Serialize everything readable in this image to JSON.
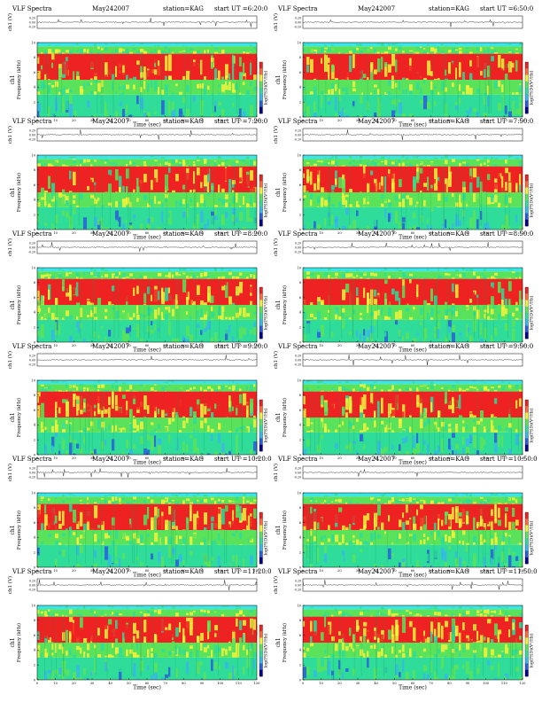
{
  "figure": {
    "x_tick_labels": [
      "0",
      "10",
      "20",
      "30",
      "40",
      "50",
      "60",
      "70",
      "80",
      "90",
      "100",
      "110",
      "120"
    ],
    "xlabel": "Time (sec)",
    "freq_tick_labels": [
      "0",
      "2",
      "4",
      "6",
      "8",
      "10"
    ],
    "freq_label_top": "ch1",
    "freq_label": "Frequency (kHz)",
    "wave_label": "ch1 (V)",
    "wave_tick_labels": [
      "0.20",
      "0.00",
      "-0.20"
    ],
    "colorbar_label": "log(PSD)(V²/Hz)"
  },
  "colors": {
    "low": "#2a5fd8",
    "mid": "#2fdc9a",
    "green": "#5ae35a",
    "yellow": "#f2f23c",
    "red": "#ee2222",
    "cyan_band": "#3ce6e6",
    "dark_blue": "#00008b"
  },
  "chart_data": [
    {
      "type": "heatmap",
      "title_left": "VLF Spectra",
      "date": "May242007",
      "station": "station=KAG",
      "start": "start UT =6:20:0",
      "xlabel": "Time (sec)",
      "ylabel": "Frequency (kHz)",
      "xlim": [
        0,
        120
      ],
      "ylim": [
        0,
        10
      ],
      "bands": [
        {
          "from_khz": 0,
          "to_khz": 3,
          "level": "low"
        },
        {
          "from_khz": 3,
          "to_khz": 5,
          "level": "mid"
        },
        {
          "from_khz": 5,
          "to_khz": 8.5,
          "level": "high"
        },
        {
          "from_khz": 8.5,
          "to_khz": 9.5,
          "level": "mid"
        },
        {
          "from_khz": 9.5,
          "to_khz": 10,
          "level": "cyan"
        }
      ]
    },
    {
      "type": "heatmap",
      "title_left": "VLF Spectra",
      "date": "May242007",
      "station": "station=KAG",
      "start": "start UT =6:50:0",
      "xlabel": "Time (sec)",
      "ylabel": "Frequency (kHz)",
      "xlim": [
        0,
        120
      ],
      "ylim": [
        0,
        10
      ],
      "bands": [
        {
          "from_khz": 0,
          "to_khz": 3,
          "level": "low"
        },
        {
          "from_khz": 3,
          "to_khz": 5,
          "level": "mid"
        },
        {
          "from_khz": 5,
          "to_khz": 8.5,
          "level": "high"
        },
        {
          "from_khz": 8.5,
          "to_khz": 9.5,
          "level": "mid"
        },
        {
          "from_khz": 9.5,
          "to_khz": 10,
          "level": "cyan"
        }
      ]
    },
    {
      "type": "heatmap",
      "title_left": "VLF Spectra",
      "date": "May242007",
      "station": "station=KAG",
      "start": "start UT =7:20:0",
      "xlabel": "Time (sec)",
      "ylabel": "Frequency (kHz)",
      "xlim": [
        0,
        120
      ],
      "ylim": [
        0,
        10
      ],
      "bands": [
        {
          "from_khz": 0,
          "to_khz": 3,
          "level": "low"
        },
        {
          "from_khz": 3,
          "to_khz": 5,
          "level": "mid"
        },
        {
          "from_khz": 5,
          "to_khz": 8.5,
          "level": "high"
        },
        {
          "from_khz": 8.5,
          "to_khz": 9.5,
          "level": "mid"
        },
        {
          "from_khz": 9.5,
          "to_khz": 10,
          "level": "cyan"
        }
      ]
    },
    {
      "type": "heatmap",
      "title_left": "VLF Spectra",
      "date": "May242007",
      "station": "station=KAG",
      "start": "start UT =7:50:0",
      "xlabel": "Time (sec)",
      "ylabel": "Frequency (kHz)",
      "xlim": [
        0,
        120
      ],
      "ylim": [
        0,
        10
      ],
      "bands": [
        {
          "from_khz": 0,
          "to_khz": 3,
          "level": "low"
        },
        {
          "from_khz": 3,
          "to_khz": 5,
          "level": "mid"
        },
        {
          "from_khz": 5,
          "to_khz": 8.5,
          "level": "high"
        },
        {
          "from_khz": 8.5,
          "to_khz": 9.5,
          "level": "mid"
        },
        {
          "from_khz": 9.5,
          "to_khz": 10,
          "level": "cyan"
        }
      ]
    },
    {
      "type": "heatmap",
      "title_left": "VLF Spectra",
      "date": "May242007",
      "station": "station=KAG",
      "start": "start UT =8:20:0",
      "xlabel": "Time (sec)",
      "ylabel": "Frequency (kHz)",
      "xlim": [
        0,
        120
      ],
      "ylim": [
        0,
        10
      ],
      "bands": [
        {
          "from_khz": 0,
          "to_khz": 3,
          "level": "low"
        },
        {
          "from_khz": 3,
          "to_khz": 5,
          "level": "mid"
        },
        {
          "from_khz": 5,
          "to_khz": 8.5,
          "level": "high"
        },
        {
          "from_khz": 8.5,
          "to_khz": 9.5,
          "level": "mid"
        },
        {
          "from_khz": 9.5,
          "to_khz": 10,
          "level": "cyan"
        }
      ]
    },
    {
      "type": "heatmap",
      "title_left": "VLF Spectra",
      "date": "May242007",
      "station": "station=KAG",
      "start": "start UT =8:50:0",
      "xlabel": "Time (sec)",
      "ylabel": "Frequency (kHz)",
      "xlim": [
        0,
        120
      ],
      "ylim": [
        0,
        10
      ],
      "bands": [
        {
          "from_khz": 0,
          "to_khz": 3,
          "level": "low"
        },
        {
          "from_khz": 3,
          "to_khz": 5,
          "level": "mid"
        },
        {
          "from_khz": 5,
          "to_khz": 8.5,
          "level": "high"
        },
        {
          "from_khz": 8.5,
          "to_khz": 9.5,
          "level": "mid"
        },
        {
          "from_khz": 9.5,
          "to_khz": 10,
          "level": "cyan"
        }
      ]
    },
    {
      "type": "heatmap",
      "title_left": "VLF Spectra",
      "date": "May242007",
      "station": "station=KAG",
      "start": "start UT =9:20:0",
      "xlabel": "Time (sec)",
      "ylabel": "Frequency (kHz)",
      "xlim": [
        0,
        120
      ],
      "ylim": [
        0,
        10
      ],
      "bands": [
        {
          "from_khz": 0,
          "to_khz": 3,
          "level": "low"
        },
        {
          "from_khz": 3,
          "to_khz": 5,
          "level": "mid"
        },
        {
          "from_khz": 5,
          "to_khz": 8.5,
          "level": "high"
        },
        {
          "from_khz": 8.5,
          "to_khz": 9.5,
          "level": "mid"
        },
        {
          "from_khz": 9.5,
          "to_khz": 10,
          "level": "cyan"
        }
      ]
    },
    {
      "type": "heatmap",
      "title_left": "VLF Spectra",
      "date": "May242007",
      "station": "station=KAG",
      "start": "start UT =9:50:0",
      "xlabel": "Time (sec)",
      "ylabel": "Frequency (kHz)",
      "xlim": [
        0,
        120
      ],
      "ylim": [
        0,
        10
      ],
      "bands": [
        {
          "from_khz": 0,
          "to_khz": 3,
          "level": "low"
        },
        {
          "from_khz": 3,
          "to_khz": 5,
          "level": "mid"
        },
        {
          "from_khz": 5,
          "to_khz": 8.5,
          "level": "high"
        },
        {
          "from_khz": 8.5,
          "to_khz": 9.5,
          "level": "mid"
        },
        {
          "from_khz": 9.5,
          "to_khz": 10,
          "level": "cyan"
        }
      ]
    },
    {
      "type": "heatmap",
      "title_left": "VLF Spectra",
      "date": "May242007",
      "station": "station=KAG",
      "start": "start UT =10:20:0",
      "xlabel": "Time (sec)",
      "ylabel": "Frequency (kHz)",
      "xlim": [
        0,
        120
      ],
      "ylim": [
        0,
        10
      ],
      "bands": [
        {
          "from_khz": 0,
          "to_khz": 3,
          "level": "low"
        },
        {
          "from_khz": 3,
          "to_khz": 5,
          "level": "mid"
        },
        {
          "from_khz": 5,
          "to_khz": 8.5,
          "level": "high"
        },
        {
          "from_khz": 8.5,
          "to_khz": 9.5,
          "level": "mid"
        },
        {
          "from_khz": 9.5,
          "to_khz": 10,
          "level": "cyan"
        }
      ]
    },
    {
      "type": "heatmap",
      "title_left": "VLF Spectra",
      "date": "May242007",
      "station": "station=KAG",
      "start": "start UT =10:50:0",
      "xlabel": "Time (sec)",
      "ylabel": "Frequency (kHz)",
      "xlim": [
        0,
        120
      ],
      "ylim": [
        0,
        10
      ],
      "bands": [
        {
          "from_khz": 0,
          "to_khz": 3,
          "level": "low"
        },
        {
          "from_khz": 3,
          "to_khz": 5,
          "level": "mid"
        },
        {
          "from_khz": 5,
          "to_khz": 8.5,
          "level": "high"
        },
        {
          "from_khz": 8.5,
          "to_khz": 9.5,
          "level": "mid"
        },
        {
          "from_khz": 9.5,
          "to_khz": 10,
          "level": "cyan"
        }
      ]
    },
    {
      "type": "heatmap",
      "title_left": "VLF Spectra",
      "date": "May242007",
      "station": "station=KAG",
      "start": "start UT =11:20:0",
      "xlabel": "Time (sec)",
      "ylabel": "Frequency (kHz)",
      "xlim": [
        0,
        120
      ],
      "ylim": [
        0,
        10
      ],
      "bands": [
        {
          "from_khz": 0,
          "to_khz": 3,
          "level": "low"
        },
        {
          "from_khz": 3,
          "to_khz": 5,
          "level": "mid"
        },
        {
          "from_khz": 5,
          "to_khz": 8.5,
          "level": "high"
        },
        {
          "from_khz": 8.5,
          "to_khz": 9.5,
          "level": "mid"
        },
        {
          "from_khz": 9.5,
          "to_khz": 10,
          "level": "cyan"
        }
      ]
    },
    {
      "type": "heatmap",
      "title_left": "VLF Spectra",
      "date": "May242007",
      "station": "station=KAG",
      "start": "start UT =11:50:0",
      "xlabel": "Time (sec)",
      "ylabel": "Frequency (kHz)",
      "xlim": [
        0,
        120
      ],
      "ylim": [
        0,
        10
      ],
      "bands": [
        {
          "from_khz": 0,
          "to_khz": 3,
          "level": "low"
        },
        {
          "from_khz": 3,
          "to_khz": 5,
          "level": "mid"
        },
        {
          "from_khz": 5,
          "to_khz": 8.5,
          "level": "high"
        },
        {
          "from_khz": 8.5,
          "to_khz": 9.5,
          "level": "mid"
        },
        {
          "from_khz": 9.5,
          "to_khz": 10,
          "level": "cyan"
        }
      ]
    }
  ]
}
